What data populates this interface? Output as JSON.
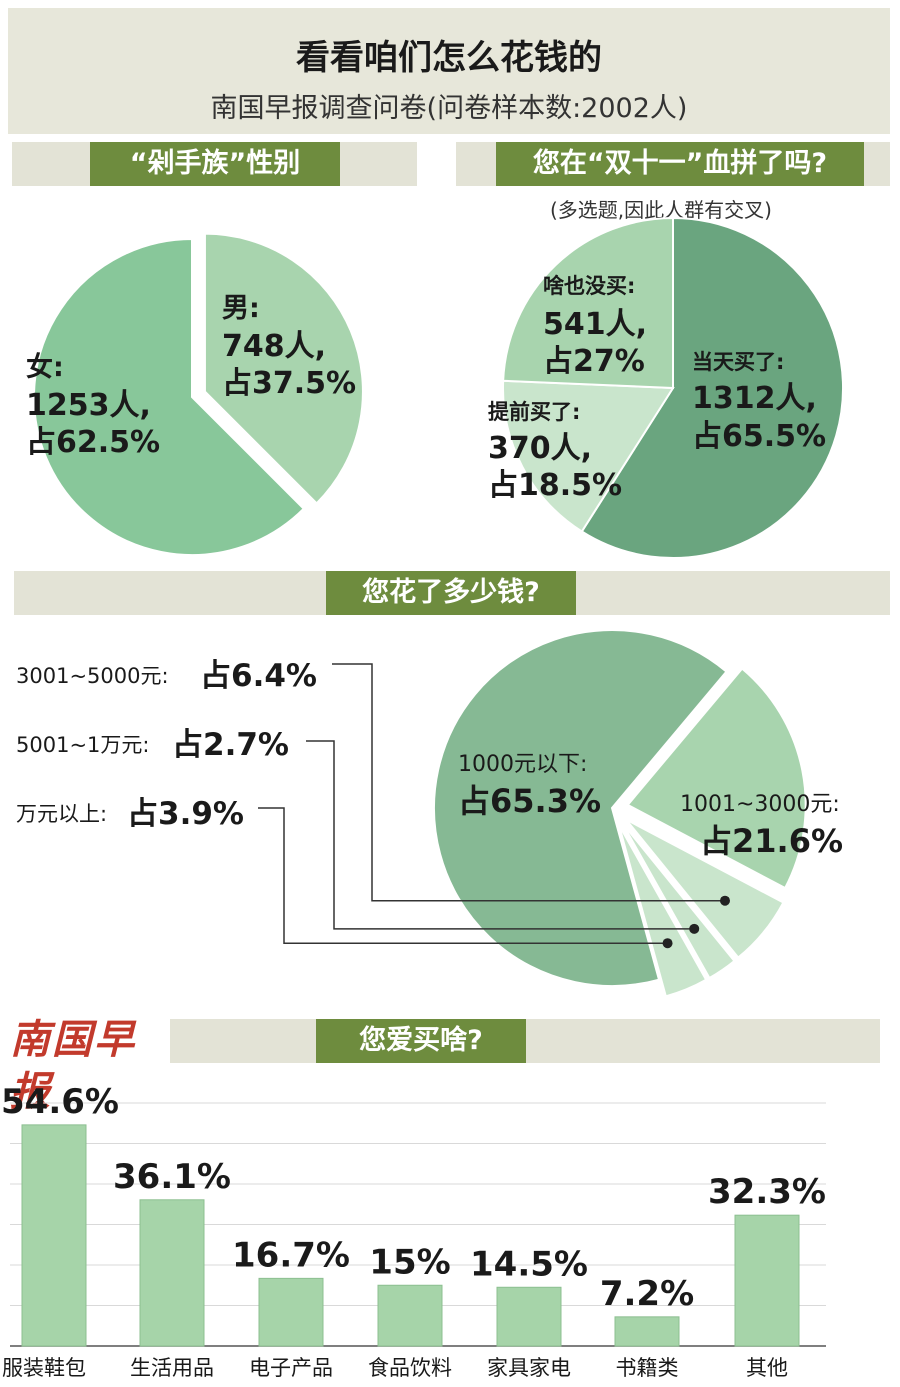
{
  "header": {
    "title": "看看咱们怎么花钱的",
    "subtitle": "南国早报调查问卷(问卷样本数:2002人)"
  },
  "brand": {
    "logo_text": "南国早报"
  },
  "colors": {
    "pie_light": "#a8d4ae",
    "pie_mid": "#88c79a",
    "pie_dark": "#6aa57f",
    "pie_pale": "#c9e5cc",
    "tag_bg": "#6e8c3e",
    "band_bg": "#e3e3d6",
    "bar_fill": "#a6d4a9"
  },
  "sections": {
    "gender": {
      "heading": "“剁手族”性别"
    },
    "double11": {
      "heading": "您在“双十一”血拼了吗?",
      "note": "(多选题,因此人群有交叉)"
    },
    "spend": {
      "heading": "您花了多少钱?"
    },
    "categories": {
      "heading": "您爱买啥?"
    }
  },
  "chart_data": [
    {
      "type": "pie",
      "name": "gender",
      "slices": [
        {
          "label": "男:",
          "count": "748人,",
          "share": "占37.5%",
          "value": 37.5,
          "exploded": true
        },
        {
          "label": "女:",
          "count": "1253人,",
          "share": "占62.5%",
          "value": 62.5
        }
      ]
    },
    {
      "type": "pie",
      "name": "double11",
      "slices": [
        {
          "label": "当天买了:",
          "count": "1312人,",
          "share": "占65.5%",
          "value": 65.5
        },
        {
          "label": "提前买了:",
          "count": "370人,",
          "share": "占18.5%",
          "value": 18.5
        },
        {
          "label": "啥也没买:",
          "count": "541人,",
          "share": "占27%",
          "value": 27
        }
      ]
    },
    {
      "type": "pie",
      "name": "spend",
      "slices": [
        {
          "label": "1000元以下:",
          "share": "占65.3%",
          "value": 65.3
        },
        {
          "label": "1001~3000元:",
          "share": "占21.6%",
          "value": 21.6
        },
        {
          "label": "3001~5000元:",
          "share": "占6.4%",
          "value": 6.4
        },
        {
          "label": "5001~1万元:",
          "share": "占2.7%",
          "value": 2.7
        },
        {
          "label": "万元以上:",
          "share": "占3.9%",
          "value": 3.9
        }
      ]
    },
    {
      "type": "bar",
      "name": "categories",
      "categories": [
        "服装鞋包",
        "生活用品",
        "电子产品",
        "食品饮料",
        "家具家电",
        "书籍类",
        "其他"
      ],
      "values": [
        54.6,
        36.1,
        16.7,
        15,
        14.5,
        7.2,
        32.3
      ],
      "value_labels": [
        "54.6%",
        "36.1%",
        "16.7%",
        "15%",
        "14.5%",
        "7.2%",
        "32.3%"
      ],
      "ylim": [
        0,
        60
      ]
    }
  ]
}
